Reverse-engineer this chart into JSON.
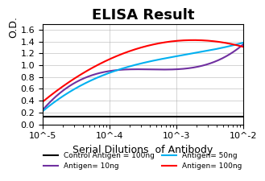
{
  "title": "ELISA Result",
  "ylabel": "O.D.",
  "xlabel": "Serial Dilutions  of Antibody",
  "x_ticks": [
    0.01,
    0.001,
    0.0001,
    1e-05
  ],
  "x_tick_labels": [
    "10^-2",
    "10^-3",
    "10^-4",
    "10^-5"
  ],
  "ylim": [
    0,
    1.7
  ],
  "yticks": [
    0,
    0.2,
    0.4,
    0.6,
    0.8,
    1.0,
    1.2,
    1.4,
    1.6
  ],
  "lines": [
    {
      "label": "Control Antigen = 100ng",
      "color": "black",
      "x": [
        1e-05,
        0.0001,
        0.001,
        0.01
      ],
      "y": [
        0.13,
        0.13,
        0.13,
        0.13
      ]
    },
    {
      "label": "Antigen= 10ng",
      "color": "#7030A0",
      "x": [
        1e-05,
        0.0001,
        0.001,
        0.01
      ],
      "y": [
        0.24,
        0.9,
        0.93,
        1.35
      ]
    },
    {
      "label": "Antigen= 50ng",
      "color": "#00B0F0",
      "x": [
        1e-05,
        0.0001,
        0.001,
        0.01
      ],
      "y": [
        0.22,
        0.87,
        1.15,
        1.38
      ]
    },
    {
      "label": "Antigen= 100ng",
      "color": "#FF0000",
      "x": [
        1e-05,
        0.0001,
        0.001,
        0.01
      ],
      "y": [
        0.38,
        1.1,
        1.41,
        1.31
      ]
    }
  ],
  "background_color": "#ffffff",
  "grid_color": "#aaaaaa",
  "title_fontsize": 13,
  "label_fontsize": 8,
  "legend_fontsize": 6.5
}
